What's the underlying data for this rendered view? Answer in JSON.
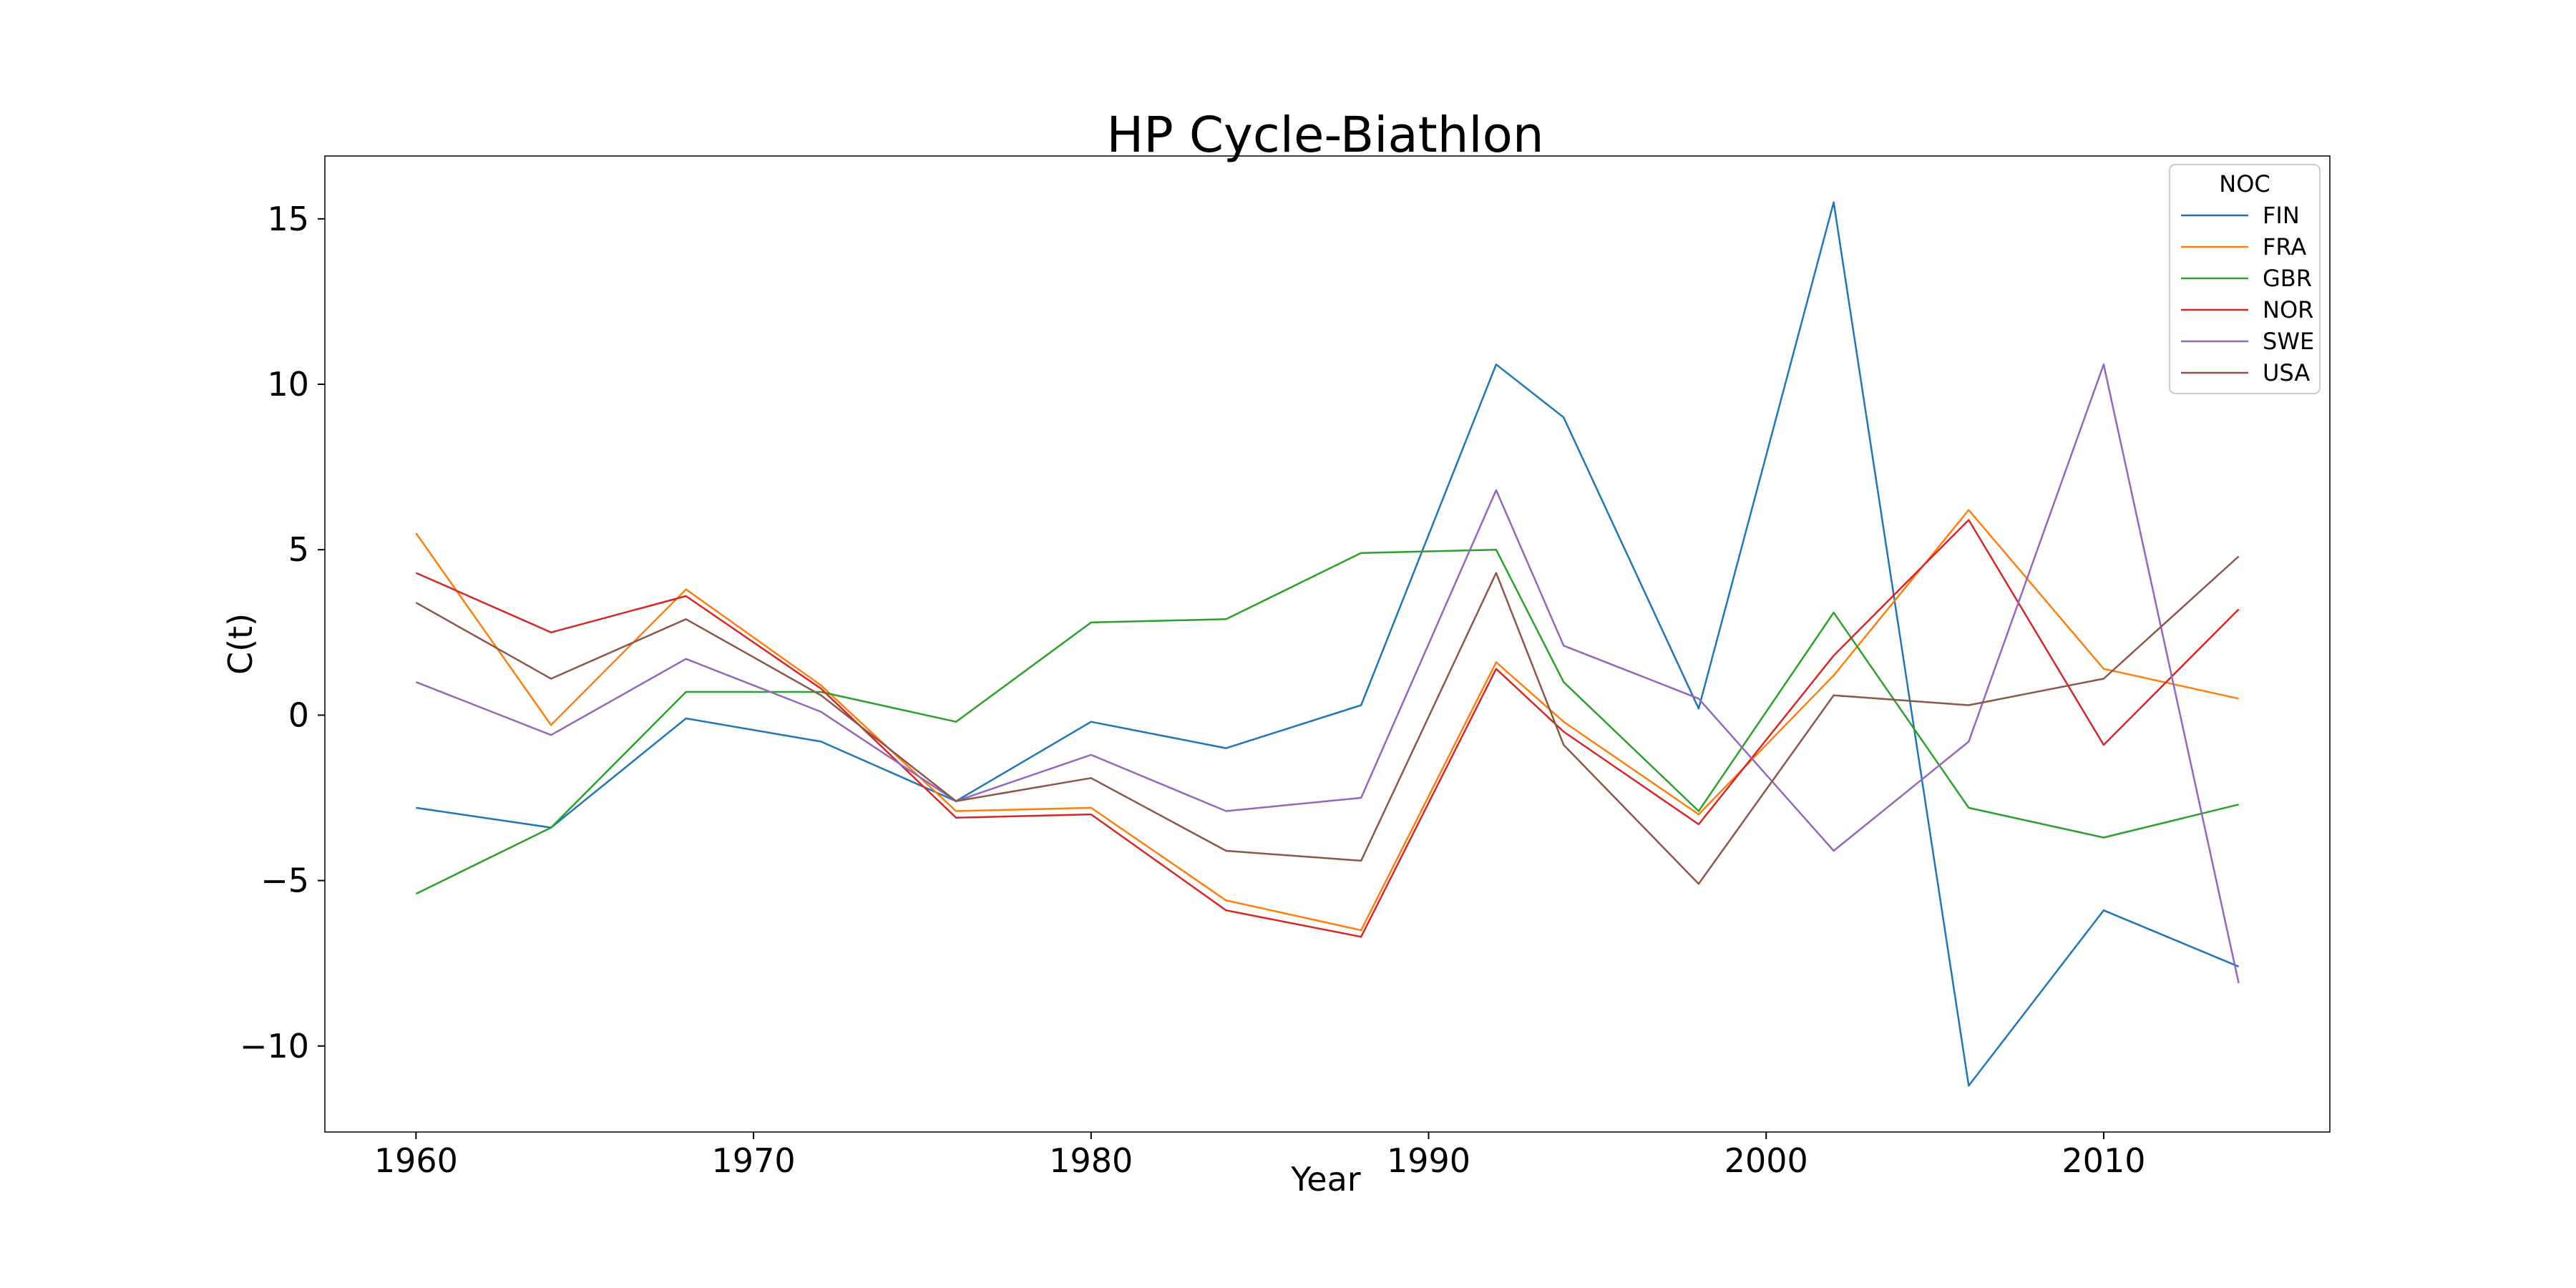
{
  "chart_data": {
    "type": "line",
    "title": "HP Cycle-Biathlon",
    "xlabel": "Year",
    "ylabel": "C(t)",
    "xlim": [
      1957.3,
      2016.7
    ],
    "ylim": [
      -12.6,
      16.9
    ],
    "xticks": [
      1960,
      1970,
      1980,
      1990,
      2000,
      2010
    ],
    "yticks": [
      15,
      10,
      5,
      0,
      -5,
      -10
    ],
    "ytick_labels": [
      "15",
      "10",
      "5",
      "0",
      "−5",
      "−10"
    ],
    "grid": false,
    "legend": {
      "title": "NOC",
      "placement": "top-right"
    },
    "x": [
      1960,
      1964,
      1968,
      1972,
      1976,
      1980,
      1984,
      1988,
      1992,
      1994,
      1998,
      2002,
      2006,
      2010,
      2014
    ],
    "series": [
      {
        "name": "FIN",
        "color": "#1f77b4",
        "values": [
          -2.8,
          -3.4,
          -0.1,
          -0.8,
          -2.6,
          -0.2,
          -1.0,
          0.3,
          10.6,
          9.0,
          0.2,
          15.5,
          -11.2,
          -5.9,
          -7.6
        ]
      },
      {
        "name": "FRA",
        "color": "#ff7f0e",
        "values": [
          5.5,
          -0.3,
          3.8,
          0.9,
          -2.9,
          -2.8,
          -5.6,
          -6.5,
          1.6,
          -0.2,
          -3.0,
          1.2,
          6.2,
          1.4,
          0.5
        ]
      },
      {
        "name": "GBR",
        "color": "#2ca02c",
        "values": [
          -5.4,
          -3.4,
          0.7,
          0.7,
          -0.2,
          2.8,
          2.9,
          4.9,
          5.0,
          1.0,
          -2.9,
          3.1,
          -2.8,
          -3.7,
          -2.7
        ]
      },
      {
        "name": "NOR",
        "color": "#d62728",
        "values": [
          4.3,
          2.5,
          3.6,
          0.8,
          -3.1,
          -3.0,
          -5.9,
          -6.7,
          1.4,
          -0.5,
          -3.3,
          1.8,
          5.9,
          -0.9,
          3.2
        ]
      },
      {
        "name": "SWE",
        "color": "#9467bd",
        "values": [
          1.0,
          -0.6,
          1.7,
          0.1,
          -2.6,
          -1.2,
          -2.9,
          -2.5,
          6.8,
          2.1,
          0.5,
          -4.1,
          -0.8,
          10.6,
          -8.1
        ]
      },
      {
        "name": "USA",
        "color": "#8c564b",
        "values": [
          3.4,
          1.1,
          2.9,
          0.6,
          -2.6,
          -1.9,
          -4.1,
          -4.4,
          4.3,
          -0.9,
          -5.1,
          0.6,
          0.3,
          1.1,
          4.8
        ]
      }
    ]
  }
}
